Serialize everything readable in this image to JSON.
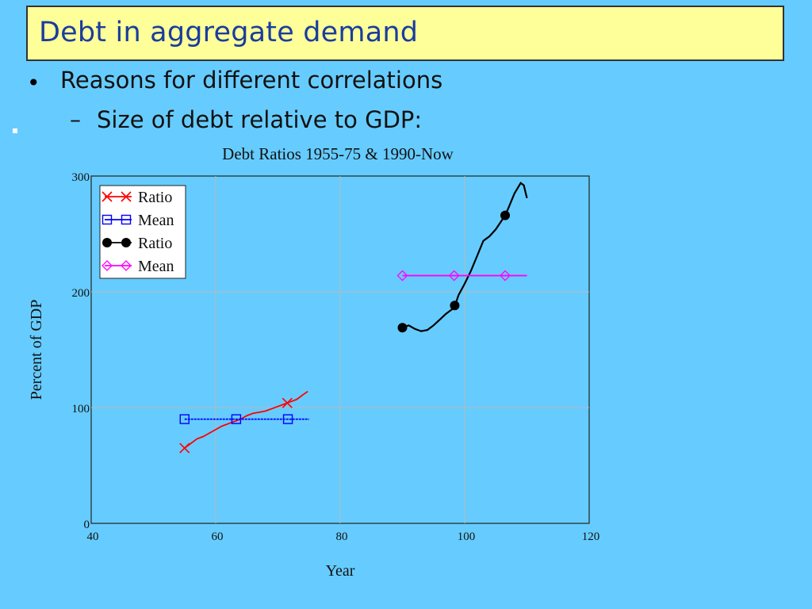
{
  "slide": {
    "title": "Debt in aggregate demand",
    "bullet_marker": "•",
    "bullet": "Reasons for different correlations",
    "sub_marker": "–",
    "sub_bullet": "Size of debt relative to GDP:"
  },
  "chart_data": {
    "type": "line",
    "title": "Debt Ratios 1955-75 & 1990-Now",
    "xlabel": "Year",
    "ylabel": "Percent of GDP",
    "xlim": [
      40,
      120
    ],
    "ylim": [
      0,
      300
    ],
    "x_ticks": [
      "40",
      "60",
      "80",
      "100",
      "120"
    ],
    "y_ticks": [
      "0",
      "100",
      "200",
      "300"
    ],
    "grid": true,
    "legend_position": "top-left",
    "series": [
      {
        "name": "Ratio",
        "color": "#ff0000",
        "marker": "x",
        "x": [
          55,
          56,
          57,
          58,
          59,
          60,
          61,
          62,
          63,
          64,
          65,
          66,
          67,
          68,
          69,
          70,
          71,
          72,
          73,
          74,
          74.8
        ],
        "y": [
          65,
          69,
          73,
          75,
          78,
          81,
          84,
          86,
          88,
          90,
          93,
          95,
          96,
          97,
          99,
          101,
          103,
          105,
          107,
          111,
          114
        ],
        "marker_x": [
          55,
          71.5
        ]
      },
      {
        "name": "Mean",
        "color": "#0000ff",
        "marker": "square",
        "x": [
          55,
          75
        ],
        "y": [
          90,
          90
        ],
        "marker_x": [
          55,
          63.3,
          71.6
        ]
      },
      {
        "name": "Ratio",
        "color": "#000000",
        "marker": "circle",
        "x": [
          90,
          91,
          92,
          93,
          94,
          95,
          96,
          97,
          98,
          98.5,
          99,
          100,
          101,
          102,
          103,
          104,
          105,
          106,
          106.5,
          107,
          108,
          109,
          109.5,
          110
        ],
        "y": [
          169,
          171,
          168,
          166,
          167,
          171,
          176,
          181,
          185,
          189,
          197,
          207,
          218,
          231,
          244,
          248,
          254,
          262,
          266,
          272,
          285,
          294,
          292,
          281
        ],
        "marker_x": [
          90,
          98.4,
          106.5
        ]
      },
      {
        "name": "Mean",
        "color": "#ff00ff",
        "marker": "diamond",
        "x": [
          90,
          110
        ],
        "y": [
          214,
          214
        ],
        "marker_x": [
          90,
          98.3,
          106.5
        ]
      }
    ]
  }
}
